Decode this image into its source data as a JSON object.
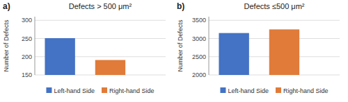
{
  "chart_data": [
    {
      "type": "bar",
      "title": "Defects > 500 μm²",
      "ylabel": "Number of Defects",
      "annotations": [
        "a)"
      ],
      "categories": [
        "Left-hand Side",
        "Right-hand Side"
      ],
      "values": [
        251,
        191
      ],
      "colors": [
        "#4472C4",
        "#E07B39"
      ],
      "ylim": [
        150,
        310
      ],
      "yticks": [
        150,
        200,
        250,
        300
      ],
      "grid": true,
      "legend": "bottom",
      "tick_labels": "y"
    },
    {
      "type": "bar",
      "title": "Defects ≤500 μm²",
      "ylabel": "Number of Defects",
      "annotations": [
        "b)"
      ],
      "categories": [
        "Left-hand Side",
        "Right-hand Side"
      ],
      "values": [
        3150,
        3250
      ],
      "colors": [
        "#4472C4",
        "#E07B39"
      ],
      "ylim": [
        2000,
        3600
      ],
      "yticks": [
        2000,
        2500,
        3000,
        3500
      ],
      "grid": true,
      "legend": "bottom",
      "tick_labels": "y"
    }
  ]
}
